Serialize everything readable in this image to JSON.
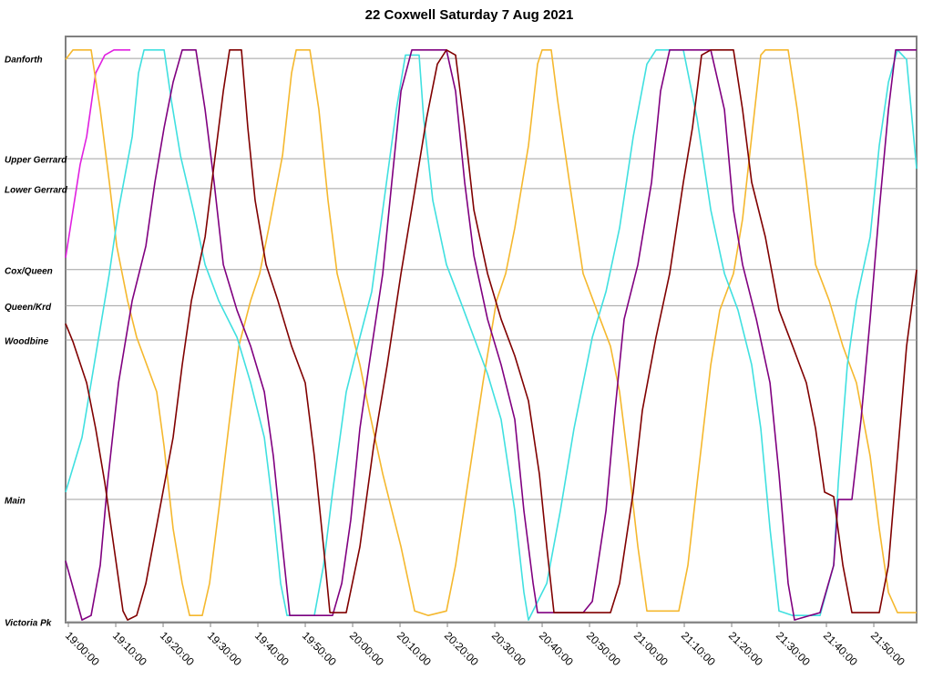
{
  "chart_data": {
    "type": "line",
    "title": "22 Coxwell Saturday 7 Aug 2021",
    "xlim": [
      "18:59:25",
      "21:59:02"
    ],
    "xticks": [
      "19:00:00",
      "19:10:00",
      "19:20:00",
      "19:30:00",
      "19:40:00",
      "19:50:00",
      "20:00:00",
      "20:10:00",
      "20:20:00",
      "20:30:00",
      "20:40:00",
      "20:50:00",
      "21:00:00",
      "21:10:00",
      "21:20:00",
      "21:30:00",
      "21:40:00",
      "21:50:00"
    ],
    "ylim": [
      0,
      103.9
    ],
    "yticks": [
      {
        "value": 100,
        "label": "Danforth"
      },
      {
        "value": 82.2,
        "label": "Upper Gerrard"
      },
      {
        "value": 76.9,
        "label": "Lower Gerrard"
      },
      {
        "value": 62.5,
        "label": "Cox/Queen"
      },
      {
        "value": 56.1,
        "label": "Queen/Krd"
      },
      {
        "value": 50,
        "label": "Woodbine"
      },
      {
        "value": 21.7,
        "label": "Main"
      },
      {
        "value": 0,
        "label": "Victoria Pk"
      }
    ],
    "grid": true,
    "series": [
      {
        "color": "#e020e0",
        "x": [
          "18:59:25",
          "19:02:30",
          "19:03:51",
          "19:05:46",
          "19:07:42",
          "19:09:37",
          "19:13:05"
        ],
        "values": [
          64.6,
          81.2,
          86.1,
          97.4,
          100.6,
          101.5,
          101.5
        ]
      },
      {
        "color": "#f5b82e",
        "x": [
          "18:59:25",
          "19:00:58",
          "19:04:48",
          "19:06:44",
          "19:08:39",
          "19:10:12",
          "19:12:30",
          "19:14:25",
          "19:18:39",
          "19:20:12",
          "19:22:07",
          "19:24:02",
          "19:25:35",
          "19:28:16",
          "19:29:48",
          "19:31:44",
          "19:34:02",
          "19:35:58",
          "19:38:28",
          "19:40:23",
          "19:42:18",
          "19:45:12",
          "19:47:07",
          "19:48:05",
          "19:50:58",
          "19:52:53",
          "19:54:48",
          "19:56:44",
          "19:59:37",
          "20:01:32",
          "20:03:28",
          "20:06:21",
          "20:10:12",
          "20:13:05",
          "20:15:58",
          "20:19:48",
          "20:21:44",
          "20:24:37",
          "20:27:30",
          "20:30:23",
          "20:32:18",
          "20:34:14",
          "20:37:07",
          "20:39:02",
          "20:40:00",
          "20:41:55",
          "20:43:16",
          "20:45:46",
          "20:48:39",
          "20:51:32",
          "20:54:25",
          "20:56:21",
          "20:58:16",
          "21:00:12",
          "21:02:07",
          "21:08:51",
          "21:10:46",
          "21:12:42",
          "21:15:35",
          "21:17:30",
          "21:20:23",
          "21:22:18",
          "21:24:14",
          "21:26:09",
          "21:27:07",
          "21:31:55",
          "21:33:51",
          "21:35:46",
          "21:37:42",
          "21:40:35",
          "21:43:28",
          "21:46:21",
          "21:49:14",
          "21:51:09",
          "21:53:05",
          "21:55:00",
          "21:59:02"
        ],
        "values": [
          99.8,
          101.5,
          101.5,
          90.9,
          78.0,
          66.7,
          57.0,
          50.5,
          40.8,
          31.1,
          16.5,
          6.8,
          1.1,
          1.1,
          6.8,
          19.7,
          35.9,
          48.9,
          57.0,
          61.8,
          69.9,
          82.8,
          97.4,
          101.5,
          101.5,
          90.9,
          74.8,
          61.8,
          52.1,
          45.6,
          37.5,
          26.2,
          13.3,
          1.9,
          1.1,
          1.9,
          10.0,
          26.2,
          42.4,
          57.0,
          61.8,
          69.9,
          84.5,
          99.0,
          101.5,
          101.5,
          92.6,
          78.0,
          61.8,
          55.3,
          48.9,
          40.8,
          27.8,
          13.3,
          1.9,
          1.9,
          10.0,
          24.6,
          45.6,
          55.3,
          61.8,
          71.5,
          86.1,
          100.6,
          101.5,
          101.5,
          90.9,
          78.0,
          63.4,
          57.0,
          48.9,
          42.4,
          29.4,
          16.5,
          5.2,
          1.6,
          1.6
        ]
      },
      {
        "color": "#40e0e0",
        "x": [
          "18:59:25",
          "19:02:53",
          "19:04:48",
          "19:06:44",
          "19:08:39",
          "19:10:35",
          "19:13:28",
          "19:14:48",
          "19:15:58",
          "19:20:12",
          "19:21:44",
          "19:23:39",
          "19:26:21",
          "19:28:51",
          "19:31:44",
          "19:35:35",
          "19:38:28",
          "19:41:21",
          "19:43:16",
          "19:44:48",
          "19:46:09",
          "19:51:55",
          "19:53:51",
          "19:55:46",
          "19:58:39",
          "20:01:32",
          "20:04:02",
          "20:06:21",
          "20:09:14",
          "20:11:09",
          "20:14:02",
          "20:15:00",
          "20:16:55",
          "20:19:48",
          "20:22:42",
          "20:25:35",
          "20:28:28",
          "20:31:21",
          "20:34:14",
          "20:36:09",
          "20:37:07",
          "20:40:58",
          "20:43:51",
          "20:46:44",
          "20:50:35",
          "20:53:28",
          "20:56:21",
          "20:59:14",
          "21:02:07",
          "21:04:02",
          "21:09:48",
          "21:12:42",
          "21:15:35",
          "21:18:28",
          "21:21:21",
          "21:24:14",
          "21:26:09",
          "21:28:05",
          "21:30:00",
          "21:32:53",
          "21:38:39",
          "21:41:32",
          "21:42:30",
          "21:44:25",
          "21:46:21",
          "21:49:14",
          "21:51:09",
          "21:53:05",
          "21:55:00",
          "21:56:55",
          "21:59:02"
        ],
        "values": [
          23.0,
          32.7,
          42.4,
          52.1,
          61.8,
          73.1,
          86.1,
          97.4,
          101.5,
          101.5,
          92.6,
          82.8,
          73.1,
          63.4,
          57.0,
          50.5,
          42.4,
          32.7,
          19.7,
          6.8,
          1.1,
          1.1,
          10.0,
          23.0,
          40.8,
          50.5,
          58.6,
          73.1,
          90.9,
          100.6,
          100.6,
          89.3,
          74.8,
          63.4,
          57.0,
          50.5,
          44.0,
          35.9,
          19.7,
          5.2,
          0.3,
          6.8,
          19.7,
          34.3,
          50.5,
          58.6,
          69.9,
          86.1,
          99.0,
          101.5,
          101.5,
          89.3,
          73.1,
          61.8,
          55.3,
          45.6,
          34.3,
          16.5,
          1.9,
          1.1,
          1.1,
          10.0,
          24.6,
          45.6,
          57.0,
          68.3,
          84.5,
          95.8,
          101.5,
          99.8,
          80.4
        ]
      },
      {
        "color": "#800080",
        "x": [
          "18:59:25",
          "19:02:53",
          "19:04:48",
          "19:06:44",
          "19:08:16",
          "19:10:35",
          "19:13:28",
          "19:16:21",
          "19:18:16",
          "19:20:12",
          "19:22:07",
          "19:24:02",
          "19:26:55",
          "19:28:51",
          "19:30:46",
          "19:32:42",
          "19:35:35",
          "19:38:28",
          "19:41:21",
          "19:43:16",
          "19:45:12",
          "19:46:44",
          "19:55:46",
          "19:57:42",
          "19:59:37",
          "20:01:32",
          "20:03:28",
          "20:06:21",
          "20:08:16",
          "20:10:12",
          "20:12:30",
          "20:19:48",
          "20:21:44",
          "20:23:39",
          "20:25:35",
          "20:28:28",
          "20:31:21",
          "20:34:14",
          "20:36:09",
          "20:38:05",
          "20:39:02",
          "20:48:39",
          "20:50:35",
          "20:53:28",
          "20:55:23",
          "20:57:18",
          "21:00:12",
          "21:03:05",
          "21:05:00",
          "21:06:55",
          "21:15:35",
          "21:18:28",
          "21:20:23",
          "21:22:18",
          "21:25:12",
          "21:28:05",
          "21:30:00",
          "21:31:55",
          "21:33:16",
          "21:38:39",
          "21:41:32",
          "21:42:30",
          "21:45:23",
          "21:47:18",
          "21:49:14",
          "21:51:09",
          "21:53:05",
          "21:54:37",
          "21:59:02"
        ],
        "values": [
          10.8,
          0.3,
          1.1,
          10.0,
          24.6,
          42.4,
          57.0,
          66.7,
          78.0,
          87.7,
          95.8,
          101.5,
          101.5,
          90.9,
          78.0,
          63.4,
          55.3,
          48.9,
          40.8,
          29.4,
          13.3,
          1.1,
          1.1,
          6.8,
          18.1,
          34.3,
          45.6,
          61.8,
          78.0,
          94.2,
          101.5,
          101.5,
          94.2,
          78.0,
          65.0,
          53.7,
          45.6,
          35.9,
          19.7,
          6.8,
          1.6,
          1.6,
          3.6,
          19.7,
          37.5,
          53.7,
          63.4,
          78.0,
          94.2,
          101.5,
          101.5,
          90.9,
          73.1,
          63.4,
          53.7,
          42.4,
          26.2,
          6.8,
          0.3,
          1.6,
          10.0,
          21.7,
          21.7,
          35.9,
          53.7,
          73.1,
          90.9,
          101.5,
          101.5
        ]
      },
      {
        "color": "#800000",
        "x": [
          "18:59:25",
          "19:00:58",
          "19:03:51",
          "19:05:46",
          "19:07:42",
          "19:09:37",
          "19:11:32",
          "19:12:30",
          "19:14:25",
          "19:16:21",
          "19:19:14",
          "19:22:07",
          "19:24:02",
          "19:25:58",
          "19:28:51",
          "19:30:46",
          "19:32:42",
          "19:34:02",
          "19:36:32",
          "19:37:53",
          "19:39:25",
          "19:41:44",
          "19:44:14",
          "19:47:07",
          "19:50:00",
          "19:51:55",
          "19:53:51",
          "19:55:12",
          "19:58:39",
          "20:01:32",
          "20:04:25",
          "20:07:18",
          "20:10:12",
          "20:13:05",
          "20:15:35",
          "20:17:53",
          "20:19:48",
          "20:21:44",
          "20:23:39",
          "20:25:35",
          "20:28:28",
          "20:31:21",
          "20:34:14",
          "20:37:07",
          "20:39:25",
          "20:40:58",
          "20:42:30",
          "20:54:25",
          "20:56:21",
          "20:59:14",
          "21:01:09",
          "21:04:02",
          "21:06:55",
          "21:09:48",
          "21:11:44",
          "21:13:39",
          "21:15:35",
          "21:20:23",
          "21:22:18",
          "21:24:14",
          "21:27:07",
          "21:30:00",
          "21:32:53",
          "21:35:46",
          "21:37:42",
          "21:39:37",
          "21:41:32",
          "21:43:28",
          "21:45:23",
          "21:51:09",
          "21:53:05",
          "21:55:00",
          "21:56:55",
          "21:59:02"
        ],
        "values": [
          52.9,
          49.7,
          42.4,
          34.3,
          24.6,
          13.3,
          1.9,
          0.3,
          1.1,
          6.8,
          19.7,
          32.7,
          45.6,
          57.0,
          68.3,
          81.2,
          94.2,
          101.5,
          101.5,
          87.7,
          74.8,
          63.4,
          57.0,
          48.9,
          42.4,
          29.4,
          13.3,
          1.6,
          1.6,
          13.3,
          31.1,
          45.6,
          61.8,
          76.4,
          89.3,
          99.0,
          101.5,
          100.6,
          87.7,
          73.1,
          61.8,
          53.7,
          47.2,
          39.2,
          26.2,
          13.3,
          1.6,
          1.6,
          6.8,
          23.0,
          37.5,
          50.5,
          61.8,
          78.0,
          87.7,
          100.6,
          101.5,
          101.5,
          90.9,
          78.0,
          68.3,
          55.3,
          48.9,
          42.4,
          34.3,
          23.0,
          22.2,
          10.0,
          1.6,
          1.6,
          10.0,
          29.4,
          48.9,
          62.5
        ]
      }
    ]
  }
}
